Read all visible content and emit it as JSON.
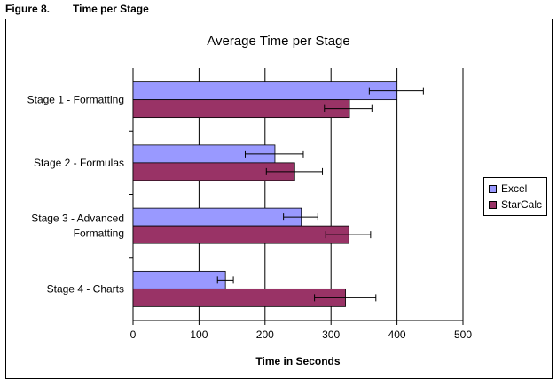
{
  "figure": {
    "number": "Figure 8.",
    "title": "Time per Stage"
  },
  "chart_data": {
    "type": "bar",
    "orientation": "horizontal",
    "title": "Average Time per Stage",
    "xlabel": "Time in Seconds",
    "ylabel": "",
    "xlim": [
      0,
      500
    ],
    "xticks": [
      0,
      100,
      200,
      300,
      400,
      500
    ],
    "grid": true,
    "legend_position": "right",
    "categories": [
      "Stage 1 - Formatting",
      "Stage 2 - Formulas",
      "Stage 3 - Advanced Formatting",
      "Stage 4 - Charts"
    ],
    "series": [
      {
        "name": "Excel",
        "color": "#9999FF",
        "values": [
          400,
          215,
          255,
          140
        ],
        "error_low": [
          358,
          170,
          228,
          128
        ],
        "error_high": [
          440,
          258,
          280,
          152
        ]
      },
      {
        "name": "StarCalc",
        "color": "#993366",
        "values": [
          328,
          245,
          327,
          322
        ],
        "error_low": [
          290,
          202,
          292,
          275
        ],
        "error_high": [
          362,
          287,
          360,
          368
        ]
      }
    ]
  }
}
